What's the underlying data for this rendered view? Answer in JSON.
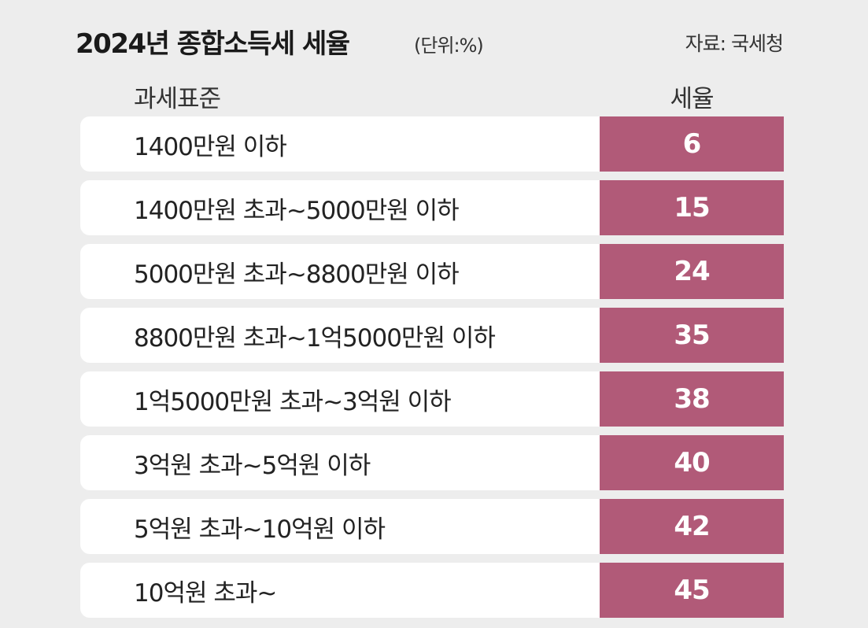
{
  "title": "2024년 종합소득세 세율",
  "unit": "(단위:%)",
  "source": "자료: 국세청",
  "colors": {
    "background": "#ededed",
    "row_background": "#ffffff",
    "rate_cell": "#b15a78",
    "rate_text": "#ffffff"
  },
  "chart_data": {
    "type": "table",
    "title": "2024년 종합소득세 세율",
    "unit": "(단위:%)",
    "source": "자료: 국세청",
    "columns": [
      "과세표준",
      "세율"
    ],
    "rows": [
      {
        "bracket": "1400만원 이하",
        "rate": 6
      },
      {
        "bracket": "1400만원 초과~5000만원 이하",
        "rate": 15
      },
      {
        "bracket": "5000만원 초과~8800만원 이하",
        "rate": 24
      },
      {
        "bracket": "8800만원 초과~1억5000만원 이하",
        "rate": 35
      },
      {
        "bracket": "1억5000만원 초과~3억원 이하",
        "rate": 38
      },
      {
        "bracket": "3억원 초과~5억원 이하",
        "rate": 40
      },
      {
        "bracket": "5억원 초과~10억원 이하",
        "rate": 42
      },
      {
        "bracket": "10억원 초과~",
        "rate": 45
      }
    ]
  }
}
